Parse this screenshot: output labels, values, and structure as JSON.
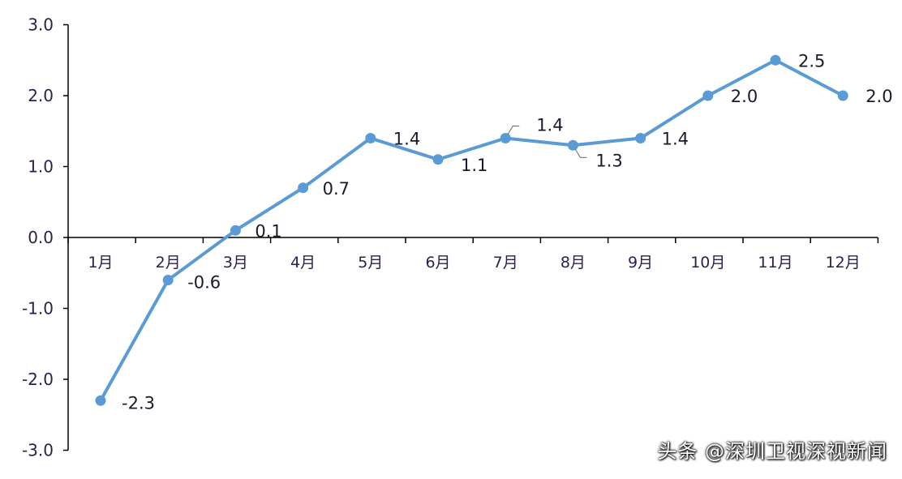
{
  "chart_data": {
    "type": "line",
    "title": "",
    "xlabel": "",
    "ylabel": "",
    "categories": [
      "1月",
      "2月",
      "3月",
      "4月",
      "5月",
      "6月",
      "7月",
      "8月",
      "9月",
      "10月",
      "11月",
      "12月"
    ],
    "series": [
      {
        "values": [
          -2.3,
          -0.6,
          0.1,
          0.7,
          1.4,
          1.1,
          1.4,
          1.3,
          1.4,
          2.0,
          2.5,
          2.0
        ]
      }
    ],
    "data_labels": [
      "-2.3",
      "-0.6",
      "0.1",
      "0.7",
      "1.4",
      "1.1",
      "1.4",
      "1.3",
      "1.4",
      "2.0",
      "2.5",
      "2.0"
    ],
    "ylim": [
      -3.0,
      3.0
    ],
    "yticks": [
      -3.0,
      -2.0,
      -1.0,
      0.0,
      1.0,
      2.0,
      3.0
    ],
    "ytick_labels": [
      "-3.0",
      "-2.0",
      "-1.0",
      "0.0",
      "1.0",
      "2.0",
      "3.0"
    ],
    "grid": false,
    "line_color": "#5b9bd5"
  },
  "watermark": "头条 @深圳卫视深视新闻"
}
